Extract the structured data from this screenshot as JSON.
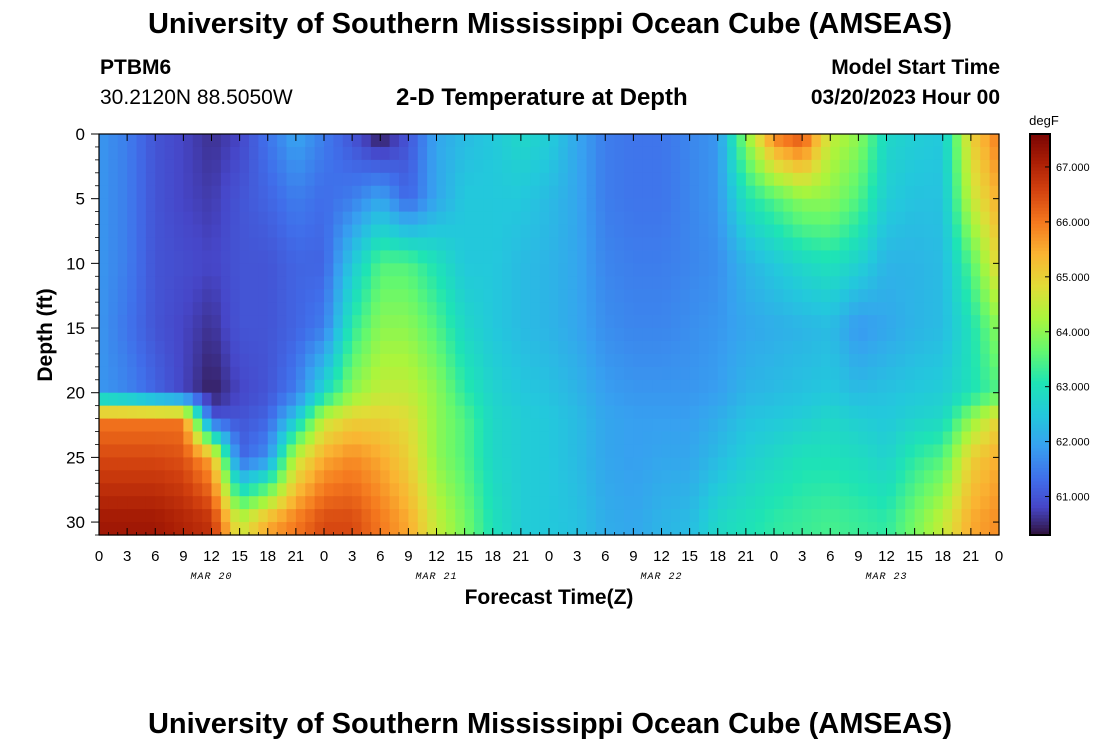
{
  "header": {
    "title": "University of Southern Mississippi Ocean Cube (AMSEAS)",
    "station_id": "PTBM6",
    "station_coords": "30.2120N  88.5050W",
    "plot_title": "2-D Temperature at Depth",
    "start_label": "Model Start Time",
    "start_time": "03/20/2023 Hour 00"
  },
  "footer": {
    "title": "University of Southern Mississippi Ocean Cube (AMSEAS)"
  },
  "chart_data": {
    "type": "heatmap",
    "title": "2-D Temperature at Depth",
    "xlabel": "Forecast Time(Z)",
    "ylabel": "Depth (ft)",
    "x_range_hours": [
      0,
      96
    ],
    "y_range_ft": [
      0,
      31
    ],
    "x_tick_labels": [
      "0",
      "3",
      "6",
      "9",
      "12",
      "15",
      "18",
      "21",
      "0",
      "3",
      "6",
      "9",
      "12",
      "15",
      "18",
      "21",
      "0",
      "3",
      "6",
      "9",
      "12",
      "15",
      "18",
      "21",
      "0",
      "3",
      "6",
      "9",
      "12",
      "15",
      "18",
      "21",
      "0"
    ],
    "y_ticks": [
      0,
      5,
      10,
      15,
      20,
      25,
      30
    ],
    "y_tick_labels": [
      "0",
      "5",
      "10",
      "15",
      "20",
      "25",
      "30"
    ],
    "date_labels": [
      {
        "hour": 12,
        "label": "MAR 20"
      },
      {
        "hour": 36,
        "label": "MAR 21"
      },
      {
        "hour": 60,
        "label": "MAR 22"
      },
      {
        "hour": 84,
        "label": "MAR 23"
      }
    ],
    "colorbar": {
      "unit": "degF",
      "min": 60.3,
      "max": 67.6,
      "ticks": [
        61.0,
        62.0,
        63.0,
        64.0,
        65.0,
        66.0,
        67.0
      ],
      "tick_labels": [
        "61.000",
        "62.000",
        "63.000",
        "64.000",
        "65.000",
        "66.000",
        "67.000"
      ]
    },
    "approx_temperature_field": {
      "time_hours": [
        0,
        3,
        6,
        9,
        12,
        15,
        18,
        21,
        24,
        27,
        30,
        33,
        36,
        39,
        42,
        45,
        48,
        51,
        54,
        57,
        60,
        63,
        66,
        69,
        72,
        75,
        78,
        81,
        84,
        87,
        90,
        93,
        96
      ],
      "depths_ft": [
        0,
        5,
        10,
        15,
        20,
        22,
        25,
        30
      ],
      "temps_degF": [
        [
          61.8,
          61.8,
          61.8,
          61.8,
          61.8,
          66.0,
          66.5,
          67.2
        ],
        [
          61.5,
          61.5,
          61.5,
          61.4,
          61.6,
          66.0,
          66.5,
          67.2
        ],
        [
          61.0,
          61.0,
          61.0,
          61.0,
          61.2,
          66.0,
          66.5,
          67.2
        ],
        [
          60.8,
          60.8,
          60.9,
          60.8,
          60.8,
          66.0,
          66.4,
          67.0
        ],
        [
          60.6,
          60.7,
          60.8,
          60.6,
          60.4,
          61.0,
          65.5,
          66.8
        ],
        [
          60.8,
          61.0,
          61.0,
          61.0,
          60.8,
          61.0,
          61.2,
          64.5
        ],
        [
          61.4,
          61.2,
          61.0,
          61.0,
          61.0,
          61.2,
          61.7,
          65.5
        ],
        [
          62.0,
          61.5,
          61.2,
          61.2,
          61.5,
          62.5,
          64.5,
          66.0
        ],
        [
          61.5,
          61.3,
          61.2,
          61.5,
          62.8,
          64.5,
          65.5,
          66.5
        ],
        [
          61.0,
          61.5,
          62.5,
          63.2,
          64.0,
          65.0,
          65.8,
          66.5
        ],
        [
          60.3,
          62.0,
          63.5,
          64.0,
          64.5,
          65.0,
          65.5,
          66.0
        ],
        [
          61.0,
          61.2,
          63.5,
          64.0,
          64.5,
          64.8,
          65.0,
          65.5
        ],
        [
          62.0,
          62.0,
          63.0,
          63.5,
          64.0,
          64.0,
          64.0,
          64.5
        ],
        [
          62.3,
          62.5,
          62.5,
          62.8,
          63.2,
          63.5,
          63.5,
          63.8
        ],
        [
          62.5,
          62.5,
          62.5,
          62.5,
          62.7,
          62.8,
          62.8,
          63.0
        ],
        [
          62.8,
          62.5,
          62.3,
          62.3,
          62.5,
          62.6,
          62.6,
          62.6
        ],
        [
          62.6,
          62.3,
          62.2,
          62.2,
          62.4,
          62.5,
          62.5,
          62.5
        ],
        [
          62.0,
          62.0,
          62.0,
          62.0,
          62.2,
          62.3,
          62.3,
          62.4
        ],
        [
          61.5,
          61.5,
          61.6,
          61.7,
          61.9,
          62.0,
          62.0,
          62.1
        ],
        [
          61.4,
          61.4,
          61.5,
          61.6,
          61.8,
          61.9,
          61.9,
          62.0
        ],
        [
          61.4,
          61.4,
          61.5,
          61.6,
          61.8,
          61.9,
          62.0,
          62.2
        ],
        [
          61.6,
          61.6,
          61.6,
          61.7,
          61.8,
          61.9,
          62.0,
          62.3
        ],
        [
          61.8,
          61.8,
          61.7,
          61.8,
          61.9,
          62.1,
          62.3,
          62.8
        ],
        [
          64.0,
          63.0,
          62.2,
          62.0,
          62.2,
          62.4,
          62.6,
          63.0
        ],
        [
          66.0,
          63.5,
          62.5,
          62.1,
          62.3,
          62.5,
          62.8,
          63.2
        ],
        [
          66.5,
          64.0,
          62.8,
          62.2,
          62.4,
          62.6,
          63.0,
          63.3
        ],
        [
          64.5,
          64.0,
          63.0,
          62.3,
          62.5,
          62.8,
          63.0,
          63.4
        ],
        [
          64.0,
          63.5,
          62.7,
          61.8,
          62.3,
          62.6,
          62.9,
          63.3
        ],
        [
          62.8,
          62.6,
          62.2,
          62.0,
          62.4,
          62.5,
          62.7,
          63.2
        ],
        [
          62.6,
          62.4,
          62.2,
          62.2,
          62.5,
          62.7,
          63.2,
          63.8
        ],
        [
          62.5,
          62.4,
          62.3,
          62.3,
          62.6,
          62.8,
          63.5,
          64.5
        ],
        [
          65.0,
          64.5,
          63.5,
          63.0,
          63.0,
          64.0,
          65.0,
          65.5
        ],
        [
          66.0,
          65.5,
          65.0,
          64.0,
          63.5,
          65.0,
          65.5,
          65.8
        ]
      ]
    }
  }
}
